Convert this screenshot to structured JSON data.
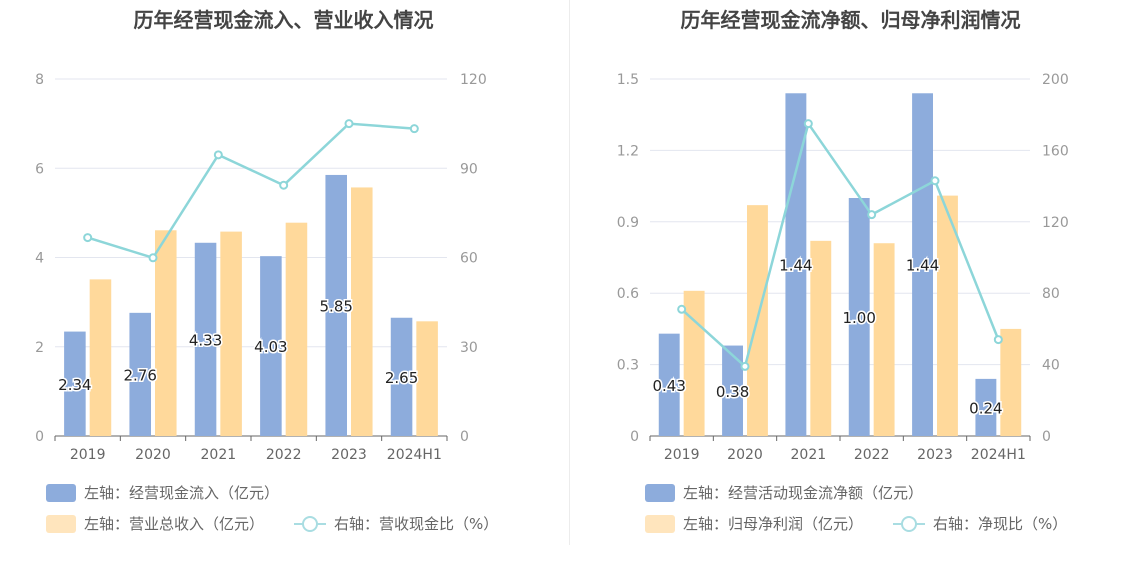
{
  "charts": [
    {
      "title": "历年经营现金流入、营业收入情况",
      "legend": [
        {
          "label": "左轴：经营现金流入（亿元）",
          "color": "#8dacdc",
          "kind": "bar"
        },
        {
          "label": "左轴：营业总收入（亿元）",
          "color": "#ffe5bd",
          "kind": "bar"
        },
        {
          "label": "右轴：营收现金比（%）",
          "color": "#a9dde2",
          "kind": "line"
        }
      ]
    },
    {
      "title": "历年经营现金流净额、归母净利润情况",
      "legend": [
        {
          "label": "左轴：经营活动现金流净额（亿元）",
          "color": "#8dacdc",
          "kind": "bar"
        },
        {
          "label": "左轴：归母净利润（亿元）",
          "color": "#ffe5bd",
          "kind": "bar"
        },
        {
          "label": "右轴：净现比（%）",
          "color": "#a9dde2",
          "kind": "line"
        }
      ]
    }
  ],
  "chart_data": [
    {
      "type": "bar",
      "title": "历年经营现金流入、营业收入情况",
      "categories": [
        "2019",
        "2020",
        "2021",
        "2022",
        "2023",
        "2024H1"
      ],
      "left_axis": {
        "range": [
          0,
          8
        ],
        "ticks": [
          "0",
          "2",
          "4",
          "6",
          "8"
        ]
      },
      "right_axis": {
        "range": [
          0,
          120
        ],
        "ticks": [
          "0",
          "30",
          "60",
          "90",
          "120"
        ]
      },
      "grid": true,
      "series": [
        {
          "name": "左轴：经营现金流入（亿元）",
          "axis": "left",
          "kind": "bar",
          "color": "#8dacdc",
          "values": [
            2.34,
            2.76,
            4.33,
            4.03,
            5.85,
            2.65
          ],
          "labels": [
            "2.34",
            "2.76",
            "4.33",
            "4.03",
            "5.85",
            "2.65"
          ]
        },
        {
          "name": "左轴：营业总收入（亿元）",
          "axis": "left",
          "kind": "bar",
          "color": "#ffd99b",
          "values": [
            3.51,
            4.61,
            4.58,
            4.78,
            5.57,
            2.57
          ]
        },
        {
          "name": "右轴：营收现金比（%）",
          "axis": "right",
          "kind": "line",
          "color": "#8dd6d9",
          "values": [
            66.7,
            59.9,
            94.5,
            84.3,
            105.0,
            103.3
          ]
        }
      ]
    },
    {
      "type": "bar",
      "title": "历年经营现金流净额、归母净利润情况",
      "categories": [
        "2019",
        "2020",
        "2021",
        "2022",
        "2023",
        "2024H1"
      ],
      "left_axis": {
        "range": [
          0,
          1.5
        ],
        "ticks": [
          "0",
          "0.3",
          "0.6",
          "0.9",
          "1.2",
          "1.5"
        ]
      },
      "right_axis": {
        "range": [
          0,
          200
        ],
        "ticks": [
          "0",
          "40",
          "80",
          "120",
          "160",
          "200"
        ]
      },
      "grid": true,
      "series": [
        {
          "name": "左轴：经营活动现金流净额（亿元）",
          "axis": "left",
          "kind": "bar",
          "color": "#8dacdc",
          "values": [
            0.43,
            0.38,
            1.44,
            1.0,
            1.44,
            0.24
          ],
          "labels": [
            "0.43",
            "0.38",
            "1.44",
            "1.00",
            "1.44",
            "0.24"
          ]
        },
        {
          "name": "左轴：归母净利润（亿元）",
          "axis": "left",
          "kind": "bar",
          "color": "#ffd99b",
          "values": [
            0.61,
            0.97,
            0.82,
            0.81,
            1.01,
            0.45
          ]
        },
        {
          "name": "右轴：净现比（%）",
          "axis": "right",
          "kind": "line",
          "color": "#8dd6d9",
          "values": [
            71,
            39,
            175,
            124,
            143,
            54
          ]
        }
      ]
    }
  ]
}
